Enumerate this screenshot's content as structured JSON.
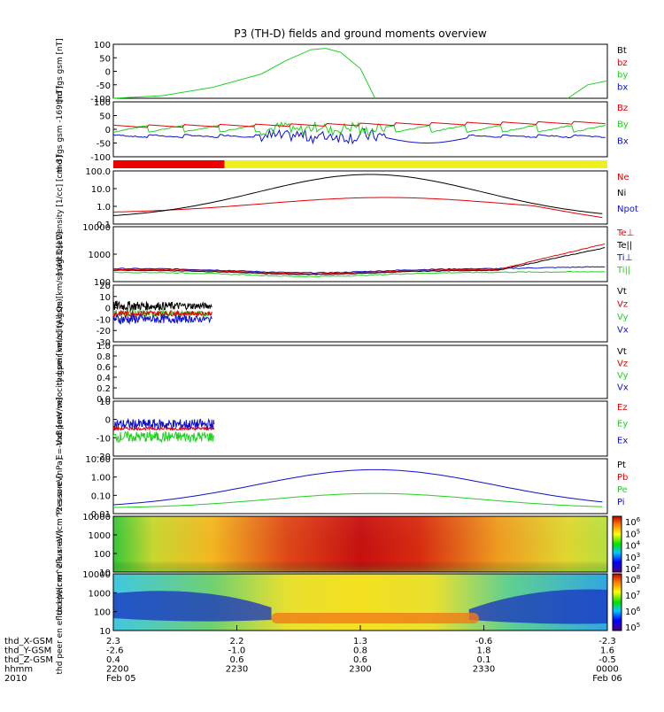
{
  "title": "P3 (TH-D) fields and ground moments overview",
  "colors": {
    "black": "#000000",
    "red": "#e00000",
    "green": "#22d022",
    "blue": "#1010d0",
    "yellow": "#f0ef20",
    "bar_red": "#ee0000"
  },
  "x_axis": {
    "rows": [
      {
        "label": "thd_X-GSM",
        "values": [
          "2.3",
          "2.2",
          "1.3",
          "-0.6",
          "-2.3"
        ]
      },
      {
        "label": "thd_Y-GSM",
        "values": [
          "-2.6",
          "-1.0",
          "0.8",
          "1.8",
          "1.6"
        ]
      },
      {
        "label": "thd_Z-GSM",
        "values": [
          "0.4",
          "0.6",
          "0.6",
          "0.1",
          "-0.5"
        ]
      },
      {
        "label": "hhmm",
        "values": [
          "2200",
          "2230",
          "2300",
          "2330",
          "0000"
        ]
      },
      {
        "label": "2010",
        "values": [
          "Feb 05",
          "",
          "",
          "",
          "Feb 06"
        ]
      }
    ]
  },
  "chart_data": [
    {
      "type": "line",
      "ylabel": "thd fgs gsm [nT]",
      "ylim": [
        -100,
        100
      ],
      "yticks": [
        "100",
        "50",
        "0",
        "-50",
        "-100"
      ],
      "legend": [
        {
          "name": "Bt",
          "color": "black"
        },
        {
          "name": "bz",
          "color": "red"
        },
        {
          "name": "by",
          "color": "green"
        },
        {
          "name": "bx",
          "color": "blue"
        }
      ],
      "series": [
        {
          "name": "by",
          "color": "green",
          "points": [
            [
              0,
              -100
            ],
            [
              0.1,
              -90
            ],
            [
              0.2,
              -60
            ],
            [
              0.3,
              -10
            ],
            [
              0.35,
              40
            ],
            [
              0.4,
              80
            ],
            [
              0.43,
              85
            ],
            [
              0.46,
              70
            ],
            [
              0.5,
              10
            ],
            [
              0.53,
              -100
            ]
          ],
          "tail": [
            [
              0.92,
              -100
            ],
            [
              0.96,
              -50
            ],
            [
              1.0,
              -35
            ]
          ]
        }
      ]
    },
    {
      "type": "line",
      "ylabel": "thd fgs gsm -169 [nT]",
      "ylim": [
        -100,
        100
      ],
      "yticks": [
        "100",
        "50",
        "0",
        "-50",
        "-100"
      ],
      "legend": [
        {
          "name": "Bz",
          "color": "red"
        },
        {
          "name": "By",
          "color": "green"
        },
        {
          "name": "Bx",
          "color": "blue"
        }
      ]
    },
    {
      "type": "bar",
      "segments": [
        {
          "from": 0,
          "to": 0.225,
          "color": "bar_red"
        },
        {
          "from": 0.225,
          "to": 1,
          "color": "yellow"
        }
      ]
    },
    {
      "type": "line",
      "ylabel": "Density [1/cc] [cm-3]",
      "ylim": [
        0.1,
        100
      ],
      "yscale": "log",
      "yticks": [
        "100.0",
        "10.0",
        "1.0",
        "0.1"
      ],
      "legend": [
        {
          "name": "Ne",
          "color": "red"
        },
        {
          "name": "Ni",
          "color": "black"
        },
        {
          "name": "Npot",
          "color": "blue"
        }
      ]
    },
    {
      "type": "line",
      "ylabel": "magt3 [eV]",
      "ylim": [
        100,
        10000
      ],
      "yscale": "log",
      "yticks": [
        "10000",
        "1000",
        "100"
      ],
      "legend": [
        {
          "name": "Te⊥",
          "color": "red"
        },
        {
          "name": "Te||",
          "color": "black"
        },
        {
          "name": "Ti⊥",
          "color": "blue"
        },
        {
          "name": "Ti||",
          "color": "green"
        }
      ]
    },
    {
      "type": "line",
      "ylabel": "thd peir velocity gsm [km/s] (All Qs)",
      "ylim": [
        -30,
        30
      ],
      "yticks": [
        "20",
        "10",
        "0",
        "-10",
        "-20",
        "-30"
      ],
      "legend": [
        {
          "name": "Vt",
          "color": "black"
        },
        {
          "name": "Vz",
          "color": "red"
        },
        {
          "name": "Vy",
          "color": "green"
        },
        {
          "name": "Vx",
          "color": "blue"
        }
      ]
    },
    {
      "type": "line",
      "ylabel": "thd peer velocity gsm [km/s] (All Qs)",
      "ylim": [
        0,
        1
      ],
      "yticks": [
        "1.0",
        "0.8",
        "0.6",
        "0.4",
        "0.2",
        "0.0"
      ],
      "legend": [
        {
          "name": "Vt",
          "color": "black"
        },
        {
          "name": "Vz",
          "color": "red"
        },
        {
          "name": "Vy",
          "color": "green"
        },
        {
          "name": "Vx",
          "color": "blue"
        }
      ]
    },
    {
      "type": "line",
      "ylabel": "E=-VxB [mV/m]",
      "ylim": [
        -20,
        20
      ],
      "yticks": [
        "10",
        "0",
        "-10",
        "-20"
      ],
      "legend": [
        {
          "name": "Ez",
          "color": "red"
        },
        {
          "name": "Ey",
          "color": "green"
        },
        {
          "name": "Ex",
          "color": "blue"
        }
      ]
    },
    {
      "type": "line",
      "ylabel": "Pressure [nPa]",
      "ylim": [
        0.01,
        10
      ],
      "yscale": "log",
      "yticks": [
        "10.00",
        "1.00",
        "0.10",
        "0.01"
      ],
      "legend": [
        {
          "name": "Pt",
          "color": "black"
        },
        {
          "name": "Pb",
          "color": "red"
        },
        {
          "name": "Pe",
          "color": "green"
        },
        {
          "name": "Pi",
          "color": "blue"
        }
      ]
    },
    {
      "type": "heatmap",
      "ylabel": "thd peir en eflux eV/(cm^2-s-sr-eV)",
      "yticks": [
        "10000",
        "1000",
        "100",
        "10"
      ],
      "colorbar": {
        "labels": [
          "10^6",
          "10^5",
          "10^4",
          "10^3",
          "10^2"
        ]
      }
    },
    {
      "type": "heatmap",
      "ylabel": "thd peer en eflux eV/(cm^2-s-sr-eV)",
      "yticks": [
        "10000",
        "1000",
        "100",
        "10"
      ],
      "colorbar": {
        "labels": [
          "10^8",
          "10^7",
          "10^6",
          "10^5"
        ]
      }
    }
  ]
}
